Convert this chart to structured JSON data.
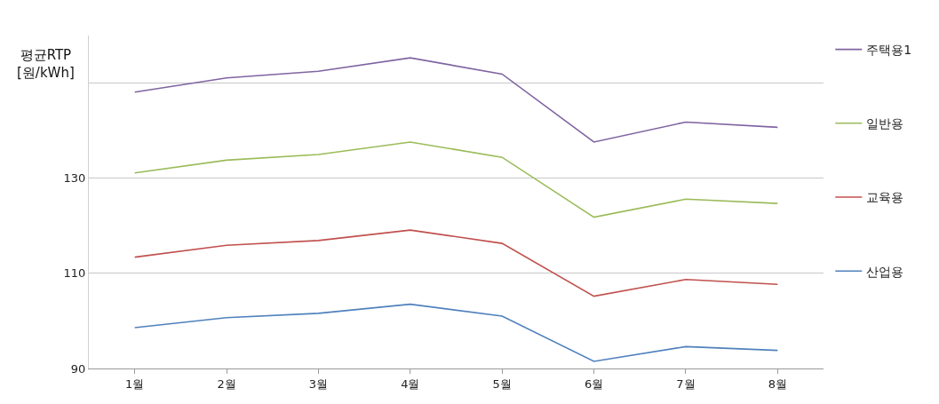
{
  "chart_data": {
    "type": "line",
    "ylabel": "평균RTP\n[원/kWh]",
    "categories": [
      "1월",
      "2월",
      "3월",
      "4월",
      "5월",
      "6월",
      "7월",
      "8월"
    ],
    "series": [
      {
        "name": "주택용1",
        "color": "#8064a2",
        "values": [
          148.1,
          151.1,
          152.5,
          155.3,
          151.9,
          137.6,
          141.8,
          140.7
        ]
      },
      {
        "name": "일반용",
        "color": "#9bbb59",
        "values": [
          131.1,
          133.8,
          135.0,
          137.6,
          134.4,
          121.8,
          125.6,
          124.7
        ]
      },
      {
        "name": "교육용",
        "color": "#c0504d",
        "values": [
          113.4,
          115.9,
          116.9,
          119.1,
          116.3,
          105.2,
          108.7,
          107.7
        ]
      },
      {
        "name": "산업용",
        "color": "#4f81bd",
        "values": [
          98.6,
          100.7,
          101.6,
          103.5,
          101.0,
          91.5,
          94.6,
          93.8
        ]
      }
    ],
    "ylim": [
      90,
      160
    ],
    "yticks": [
      90,
      110,
      130,
      {
        "value": 150,
        "label": null
      }
    ],
    "grid": "y",
    "legend": "right",
    "marker": "none",
    "line_style": "solid"
  }
}
